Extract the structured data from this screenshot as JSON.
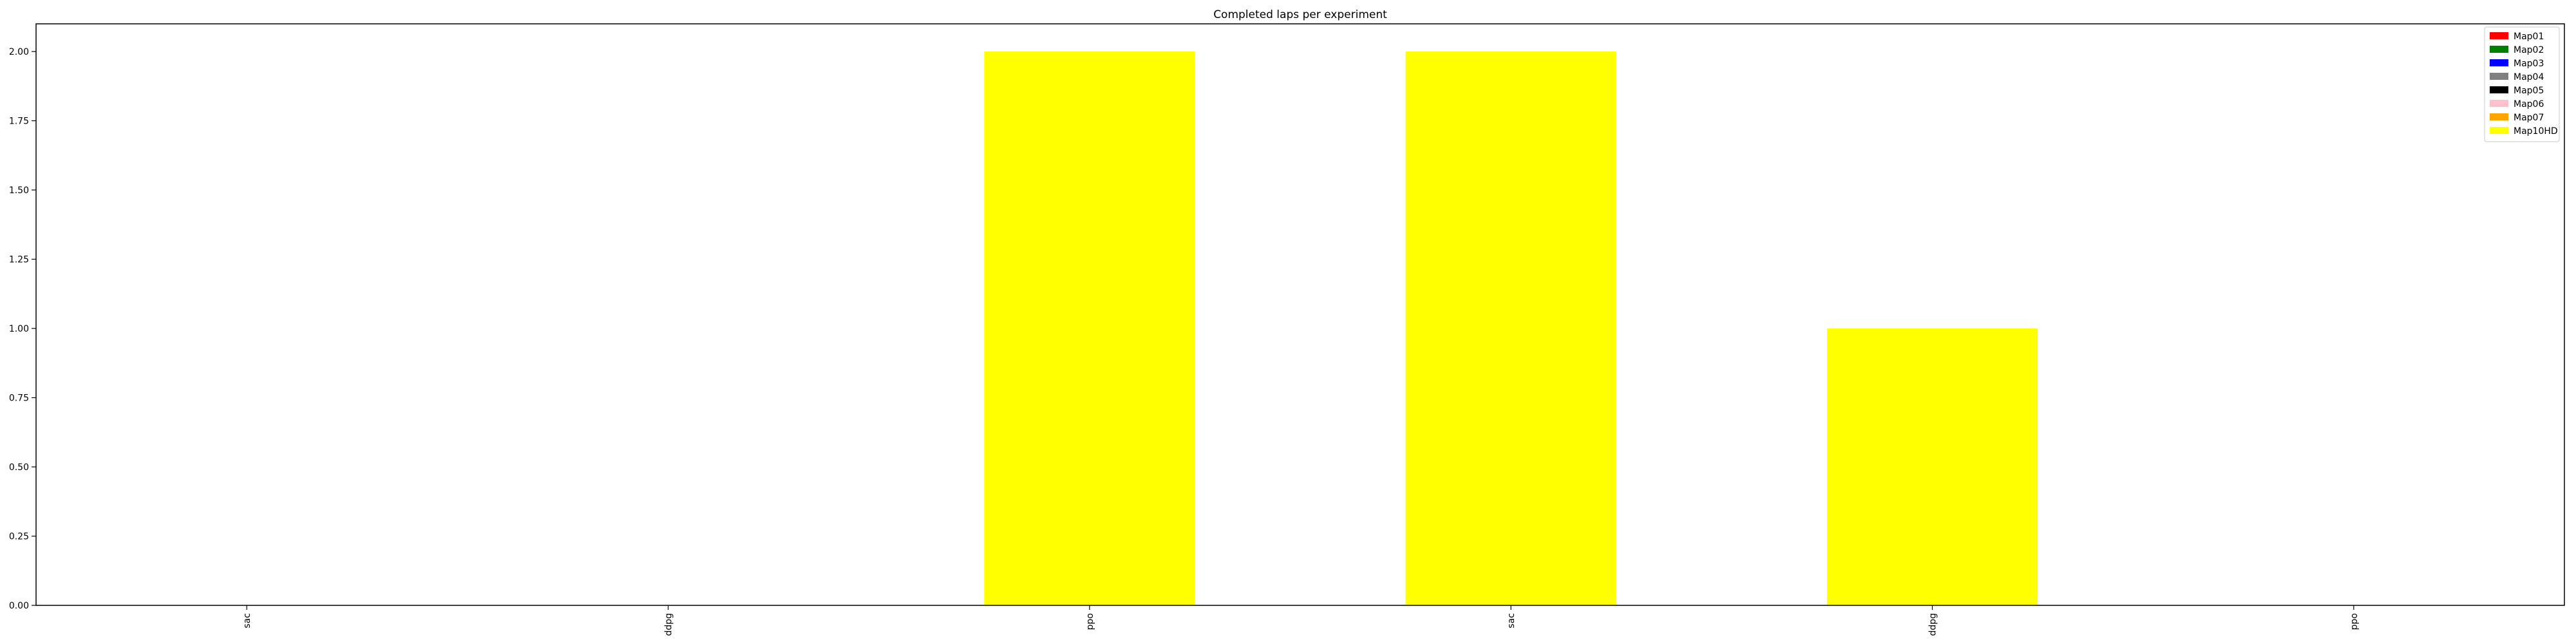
{
  "chart_data": {
    "type": "bar",
    "stacked": true,
    "title": "Completed laps per experiment",
    "xlabel": "",
    "ylabel": "",
    "categories": [
      "sac",
      "ddpg",
      "ppo",
      "sac",
      "ddpg",
      "ppo"
    ],
    "ylim": [
      0,
      2.1
    ],
    "yticks": [
      "0.00",
      "0.25",
      "0.50",
      "0.75",
      "1.00",
      "1.25",
      "1.50",
      "1.75",
      "2.00"
    ],
    "grid": false,
    "legend_position": "top-right",
    "series": [
      {
        "name": "Map01",
        "color": "#ff0000",
        "values": [
          0,
          0,
          0,
          0,
          0,
          0
        ]
      },
      {
        "name": "Map02",
        "color": "#008000",
        "values": [
          0,
          0,
          0,
          0,
          0,
          0
        ]
      },
      {
        "name": "Map03",
        "color": "#0000ff",
        "values": [
          0,
          0,
          0,
          0,
          0,
          0
        ]
      },
      {
        "name": "Map04",
        "color": "#808080",
        "values": [
          0,
          0,
          0,
          0,
          0,
          0
        ]
      },
      {
        "name": "Map05",
        "color": "#000000",
        "values": [
          0,
          0,
          0,
          0,
          0,
          0
        ]
      },
      {
        "name": "Map06",
        "color": "#ffc0cb",
        "values": [
          0,
          0,
          0,
          0,
          0,
          0
        ]
      },
      {
        "name": "Map07",
        "color": "#ffa500",
        "values": [
          0,
          0,
          0,
          0,
          0,
          0
        ]
      },
      {
        "name": "Map10HD",
        "color": "#ffff00",
        "values": [
          0,
          0,
          2,
          2,
          1,
          0
        ]
      }
    ]
  }
}
